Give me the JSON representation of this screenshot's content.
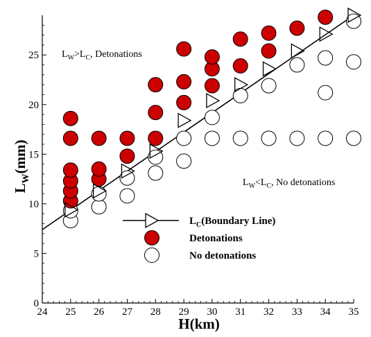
{
  "chart_data": {
    "type": "scatter",
    "title": "",
    "xlabel": "H(km)",
    "ylabel": "L",
    "ylabel_sub": "W",
    "ylabel_unit": "(mm)",
    "xlim": [
      24,
      35
    ],
    "ylim": [
      0,
      29
    ],
    "xticks": [
      24,
      25,
      26,
      27,
      28,
      29,
      30,
      31,
      32,
      33,
      34,
      35
    ],
    "yticks": [
      0,
      5,
      10,
      15,
      20,
      25
    ],
    "grid": false,
    "legend_position": "lower-center",
    "colors": {
      "detonation_fill": "#cc0000",
      "line": "#000000",
      "background": "#ffffff"
    },
    "annotations": {
      "upper": {
        "main": "L",
        "sub": "W",
        "mid": ">L",
        "sub2": "C",
        "tail": ", Detonations"
      },
      "lower": {
        "main": "L",
        "sub": "W",
        "mid": "<L",
        "sub2": "C",
        "tail": ", No detonations"
      }
    },
    "series": [
      {
        "name_main": "L",
        "name_sub": "C",
        "name_tail": "(Boundary Line)",
        "kind": "line",
        "marker": "triangle-right",
        "points": [
          [
            24,
            7.4
          ],
          [
            35,
            29.0
          ]
        ],
        "markers": [
          [
            25,
            9.4
          ],
          [
            26,
            11.3
          ],
          [
            27,
            13.3
          ],
          [
            28,
            15.3
          ],
          [
            29,
            18.4
          ],
          [
            30,
            20.4
          ],
          [
            31,
            22.0
          ],
          [
            32,
            23.6
          ],
          [
            33,
            25.4
          ],
          [
            34,
            27.1
          ],
          [
            35,
            29.0
          ]
        ]
      },
      {
        "name": "Detonations",
        "kind": "scatter",
        "marker": "filled-circle",
        "points": [
          [
            25,
            10.3
          ],
          [
            25,
            11.3
          ],
          [
            25,
            12.3
          ],
          [
            25,
            13.4
          ],
          [
            25,
            16.6
          ],
          [
            25,
            18.6
          ],
          [
            26,
            12.5
          ],
          [
            26,
            13.5
          ],
          [
            26,
            16.6
          ],
          [
            27,
            14.8
          ],
          [
            27,
            16.6
          ],
          [
            28,
            16.6
          ],
          [
            28,
            19.2
          ],
          [
            28,
            22.0
          ],
          [
            29,
            20.2
          ],
          [
            29,
            22.3
          ],
          [
            29,
            25.6
          ],
          [
            30,
            21.9
          ],
          [
            30,
            23.6
          ],
          [
            30,
            24.8
          ],
          [
            31,
            23.9
          ],
          [
            31,
            26.6
          ],
          [
            32,
            25.4
          ],
          [
            32,
            27.2
          ],
          [
            33,
            27.7
          ],
          [
            34,
            28.8
          ]
        ]
      },
      {
        "name": "No detonations",
        "kind": "scatter",
        "marker": "open-circle",
        "points": [
          [
            25,
            8.3
          ],
          [
            25,
            9.3
          ],
          [
            26,
            9.7
          ],
          [
            26,
            11.0
          ],
          [
            27,
            10.8
          ],
          [
            27,
            12.6
          ],
          [
            28,
            13.1
          ],
          [
            28,
            14.7
          ],
          [
            29,
            14.3
          ],
          [
            29,
            16.6
          ],
          [
            30,
            16.6
          ],
          [
            30,
            18.7
          ],
          [
            31,
            16.6
          ],
          [
            31,
            20.9
          ],
          [
            32,
            16.6
          ],
          [
            32,
            21.9
          ],
          [
            33,
            16.6
          ],
          [
            33,
            24.0
          ],
          [
            34,
            16.6
          ],
          [
            34,
            21.2
          ],
          [
            34,
            24.7
          ],
          [
            35,
            16.6
          ],
          [
            35,
            24.3
          ],
          [
            35,
            28.4
          ]
        ]
      }
    ]
  }
}
